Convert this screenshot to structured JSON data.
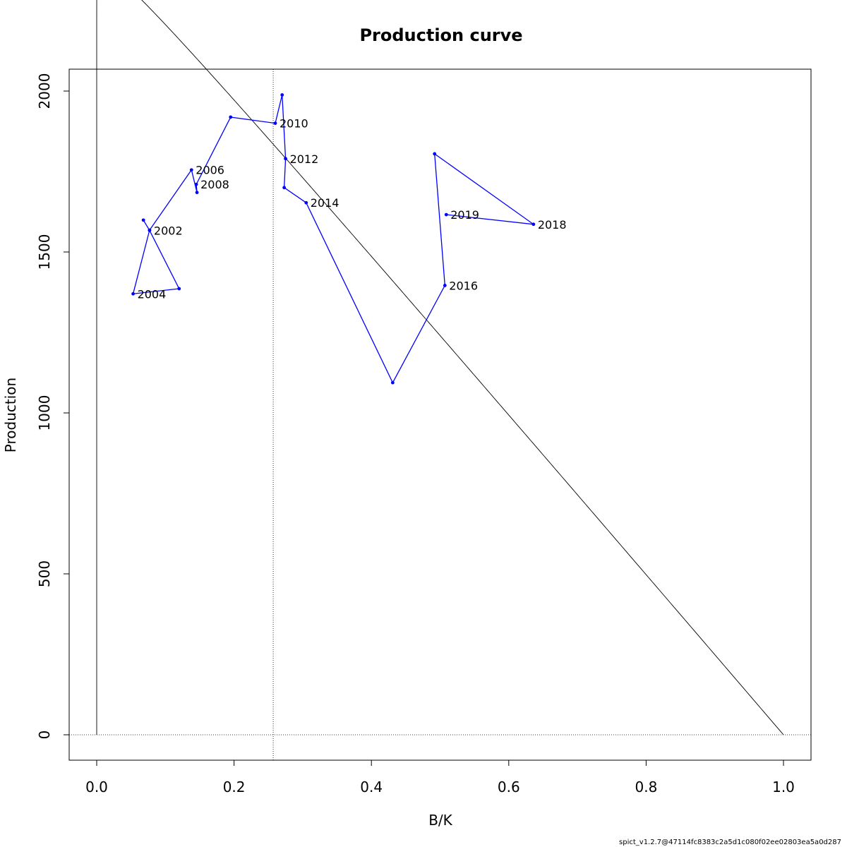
{
  "chart_data": {
    "type": "line",
    "title": "Production curve",
    "xlabel": "B/K",
    "ylabel": "Production",
    "xlim": [
      -0.04,
      1.04
    ],
    "ylim": [
      -80,
      2065
    ],
    "x_ticks": [
      0.0,
      0.2,
      0.4,
      0.6,
      0.8,
      1.0
    ],
    "x_tick_labels": [
      "0.0",
      "0.2",
      "0.4",
      "0.6",
      "0.8",
      "1.0"
    ],
    "y_ticks": [
      0,
      500,
      1000,
      1500,
      2000
    ],
    "y_tick_labels": [
      "0",
      "500",
      "1000",
      "1500",
      "2000"
    ],
    "reference_lines": {
      "vertical_x": 0.257,
      "horizontal_y": 0,
      "style": "dotted"
    },
    "curve": {
      "color": "#000000",
      "msy": 1835,
      "bmsy_k": 0.257,
      "x_range": [
        0,
        1
      ]
    },
    "series": [
      {
        "color": "#0000ff",
        "points": [
          {
            "x": 0.068,
            "y": 1599,
            "label": ""
          },
          {
            "x": 0.077,
            "y": 1567,
            "label": "2002"
          },
          {
            "x": 0.12,
            "y": 1386,
            "label": ""
          },
          {
            "x": 0.053,
            "y": 1370,
            "label": "2004"
          },
          {
            "x": 0.077,
            "y": 1568,
            "label": ""
          },
          {
            "x": 0.138,
            "y": 1755,
            "label": "2006"
          },
          {
            "x": 0.146,
            "y": 1685,
            "label": ""
          },
          {
            "x": 0.145,
            "y": 1710,
            "label": "2008"
          },
          {
            "x": 0.195,
            "y": 1919,
            "label": ""
          },
          {
            "x": 0.26,
            "y": 1900,
            "label": "2010"
          },
          {
            "x": 0.27,
            "y": 1988,
            "label": ""
          },
          {
            "x": 0.275,
            "y": 1790,
            "label": "2012"
          },
          {
            "x": 0.273,
            "y": 1700,
            "label": ""
          },
          {
            "x": 0.305,
            "y": 1653,
            "label": "2014"
          },
          {
            "x": 0.431,
            "y": 1094,
            "label": ""
          },
          {
            "x": 0.507,
            "y": 1396,
            "label": "2016"
          },
          {
            "x": 0.492,
            "y": 1805,
            "label": ""
          },
          {
            "x": 0.636,
            "y": 1586,
            "label": "2018"
          },
          {
            "x": 0.509,
            "y": 1616,
            "label": "2019"
          }
        ]
      }
    ]
  },
  "footer_text": "spict_v1.2.7@47114fc8383c2a5d1c080f02ee02803ea5a0d287"
}
